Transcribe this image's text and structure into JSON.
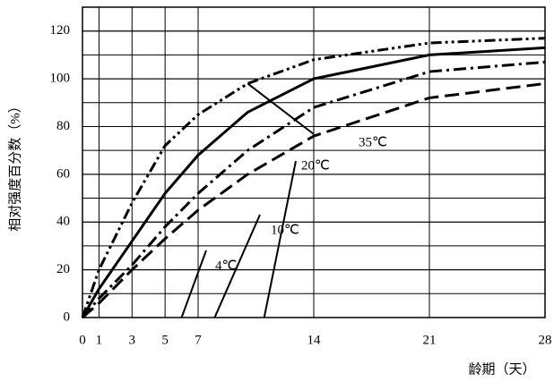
{
  "chart_data": {
    "type": "line",
    "x_label": "龄期（天）",
    "y_label": "相对强度百分数（%）",
    "x": [
      0,
      1,
      3,
      5,
      7,
      10,
      14,
      21,
      28
    ],
    "series": [
      {
        "name": "35℃",
        "color": "#000000",
        "dash": "12 4 3 4 3 4",
        "values": [
          0,
          20,
          48,
          72,
          85,
          98,
          108,
          115,
          117
        ]
      },
      {
        "name": "20℃",
        "color": "#000000",
        "dash": "none",
        "values": [
          0,
          12,
          32,
          52,
          68,
          86,
          100,
          110,
          113
        ]
      },
      {
        "name": "10℃",
        "color": "#000000",
        "dash": "14 5 3 5",
        "values": [
          0,
          8,
          22,
          38,
          52,
          70,
          88,
          103,
          107
        ]
      },
      {
        "name": "4℃",
        "color": "#000000",
        "dash": "16 7",
        "values": [
          0,
          6,
          20,
          33,
          45,
          60,
          76,
          92,
          98
        ]
      }
    ],
    "xlim": [
      0,
      28
    ],
    "xticks": [
      0,
      1,
      3,
      5,
      7,
      14,
      21,
      28
    ],
    "ylim": [
      0,
      130
    ],
    "yticks": [
      0,
      20,
      40,
      60,
      80,
      100,
      120
    ],
    "grid": true
  }
}
